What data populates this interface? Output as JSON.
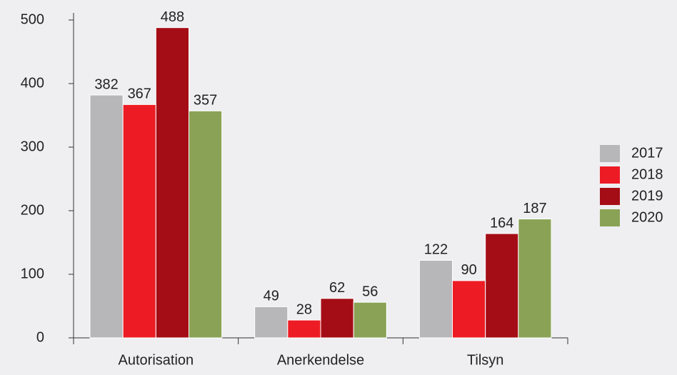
{
  "chart_data": {
    "type": "bar",
    "categories": [
      "Autorisation",
      "Anerkendelse",
      "Tilsyn"
    ],
    "series": [
      {
        "name": "2017",
        "color": "#b7b7ba",
        "values": [
          382,
          49,
          122
        ]
      },
      {
        "name": "2018",
        "color": "#ed1c24",
        "values": [
          367,
          28,
          90
        ]
      },
      {
        "name": "2019",
        "color": "#a50d16",
        "values": [
          488,
          62,
          164
        ]
      },
      {
        "name": "2020",
        "color": "#8aa256",
        "values": [
          357,
          56,
          187
        ]
      }
    ],
    "ylim": [
      0,
      500
    ],
    "yticks": [
      0,
      100,
      200,
      300,
      400,
      500
    ],
    "legend": "right"
  }
}
